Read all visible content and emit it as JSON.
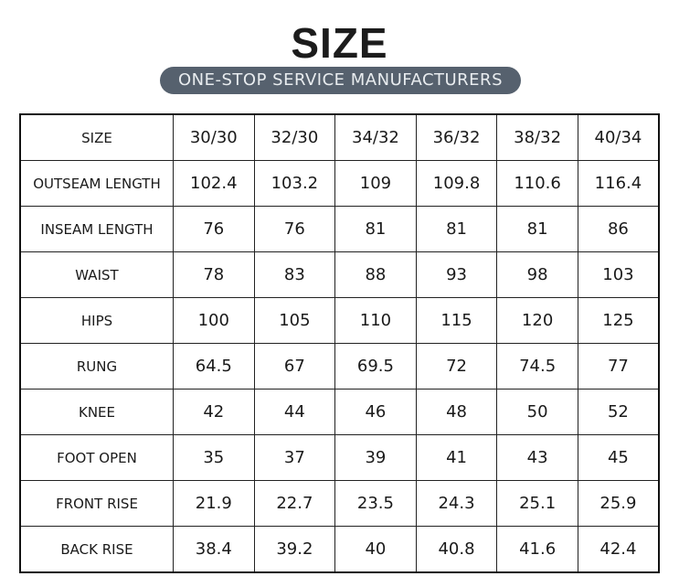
{
  "header": {
    "title": "SIZE",
    "subtitle": "ONE-STOP SERVICE MANUFACTURERS"
  },
  "table": {
    "rows": [
      [
        "SIZE",
        "30/30",
        "32/30",
        "34/32",
        "36/32",
        "38/32",
        "40/34"
      ],
      [
        "OUTSEAM LENGTH",
        "102.4",
        "103.2",
        "109",
        "109.8",
        "110.6",
        "116.4"
      ],
      [
        "INSEAM LENGTH",
        "76",
        "76",
        "81",
        "81",
        "81",
        "86"
      ],
      [
        "WAIST",
        "78",
        "83",
        "88",
        "93",
        "98",
        "103"
      ],
      [
        "HIPS",
        "100",
        "105",
        "110",
        "115",
        "120",
        "125"
      ],
      [
        "RUNG",
        "64.5",
        "67",
        "69.5",
        "72",
        "74.5",
        "77"
      ],
      [
        "KNEE",
        "42",
        "44",
        "46",
        "48",
        "50",
        "52"
      ],
      [
        "FOOT OPEN",
        "35",
        "37",
        "39",
        "41",
        "43",
        "45"
      ],
      [
        "FRONT RISE",
        "21.9",
        "22.7",
        "23.5",
        "24.3",
        "25.1",
        "25.9"
      ],
      [
        "BACK RISE",
        "38.4",
        "39.2",
        "40",
        "40.8",
        "41.6",
        "42.4"
      ]
    ]
  }
}
